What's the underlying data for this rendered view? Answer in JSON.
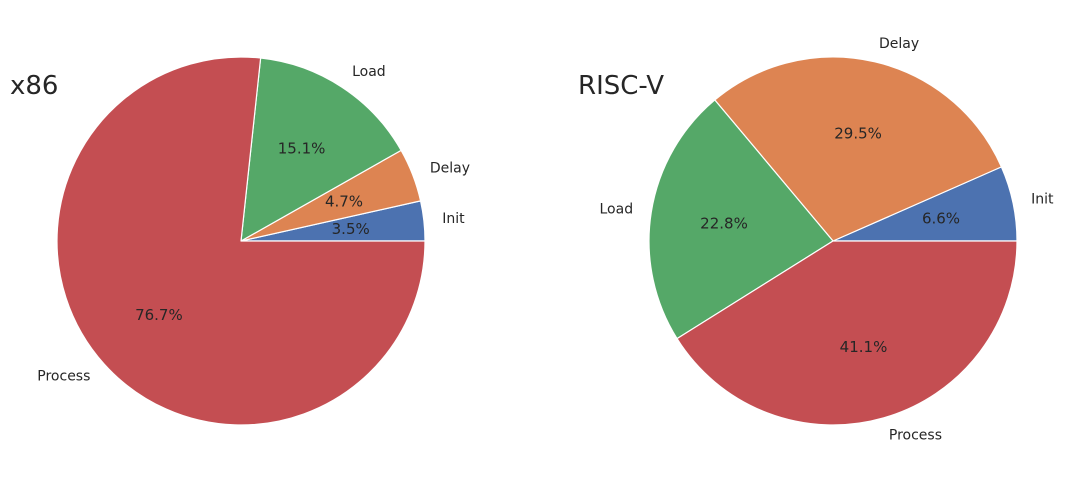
{
  "chart_data": [
    {
      "type": "pie",
      "title": "x86",
      "categories": [
        "Init",
        "Delay",
        "Load",
        "Process"
      ],
      "values": [
        3.5,
        4.7,
        15.1,
        76.7
      ],
      "value_labels": [
        "3.5%",
        "4.7%",
        "15.1%",
        "76.7%"
      ],
      "colors": [
        "#4c72b0",
        "#dd8452",
        "#55a868",
        "#c44e52"
      ],
      "start_angle": "0 degrees (3 o'clock)",
      "direction": "counter-clockwise",
      "legend": "none"
    },
    {
      "type": "pie",
      "title": "RISC-V",
      "categories": [
        "Init",
        "Delay",
        "Load",
        "Process"
      ],
      "values": [
        6.6,
        29.5,
        22.8,
        41.1
      ],
      "value_labels": [
        "6.6%",
        "29.5%",
        "22.8%",
        "41.1%"
      ],
      "colors": [
        "#4c72b0",
        "#dd8452",
        "#55a868",
        "#c44e52"
      ],
      "start_angle": "0 degrees (3 o'clock)",
      "direction": "counter-clockwise",
      "legend": "none"
    }
  ]
}
